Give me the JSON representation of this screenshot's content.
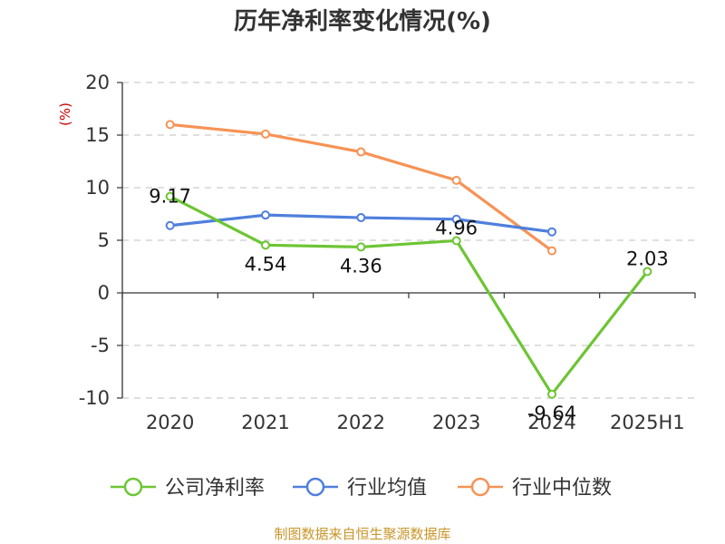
{
  "chart_data": {
    "type": "line",
    "title": "历年净利率变化情况(%)",
    "y_unit": "(%)",
    "categories": [
      "2020",
      "2021",
      "2022",
      "2023",
      "2024",
      "2025H1"
    ],
    "ylim": [
      -10,
      20
    ],
    "yticks": [
      -10,
      -5,
      0,
      5,
      10,
      15,
      20
    ],
    "grid": true,
    "legend_position": "bottom",
    "series": [
      {
        "name": "公司净利率",
        "color": "#6dc534",
        "values": [
          9.17,
          4.54,
          4.36,
          4.96,
          -9.64,
          2.03
        ],
        "labels": [
          "9.17",
          "4.54",
          "4.36",
          "4.96",
          "-9.64",
          "2.03"
        ]
      },
      {
        "name": "行业均值",
        "color": "#4f7fdd",
        "values": [
          6.4,
          7.4,
          7.15,
          7.0,
          5.8,
          null
        ]
      },
      {
        "name": "行业中位数",
        "color": "#f69355",
        "values": [
          16.0,
          15.1,
          13.4,
          10.7,
          4.0,
          null
        ]
      }
    ]
  },
  "footer": "制图数据来自恒生聚源数据库"
}
